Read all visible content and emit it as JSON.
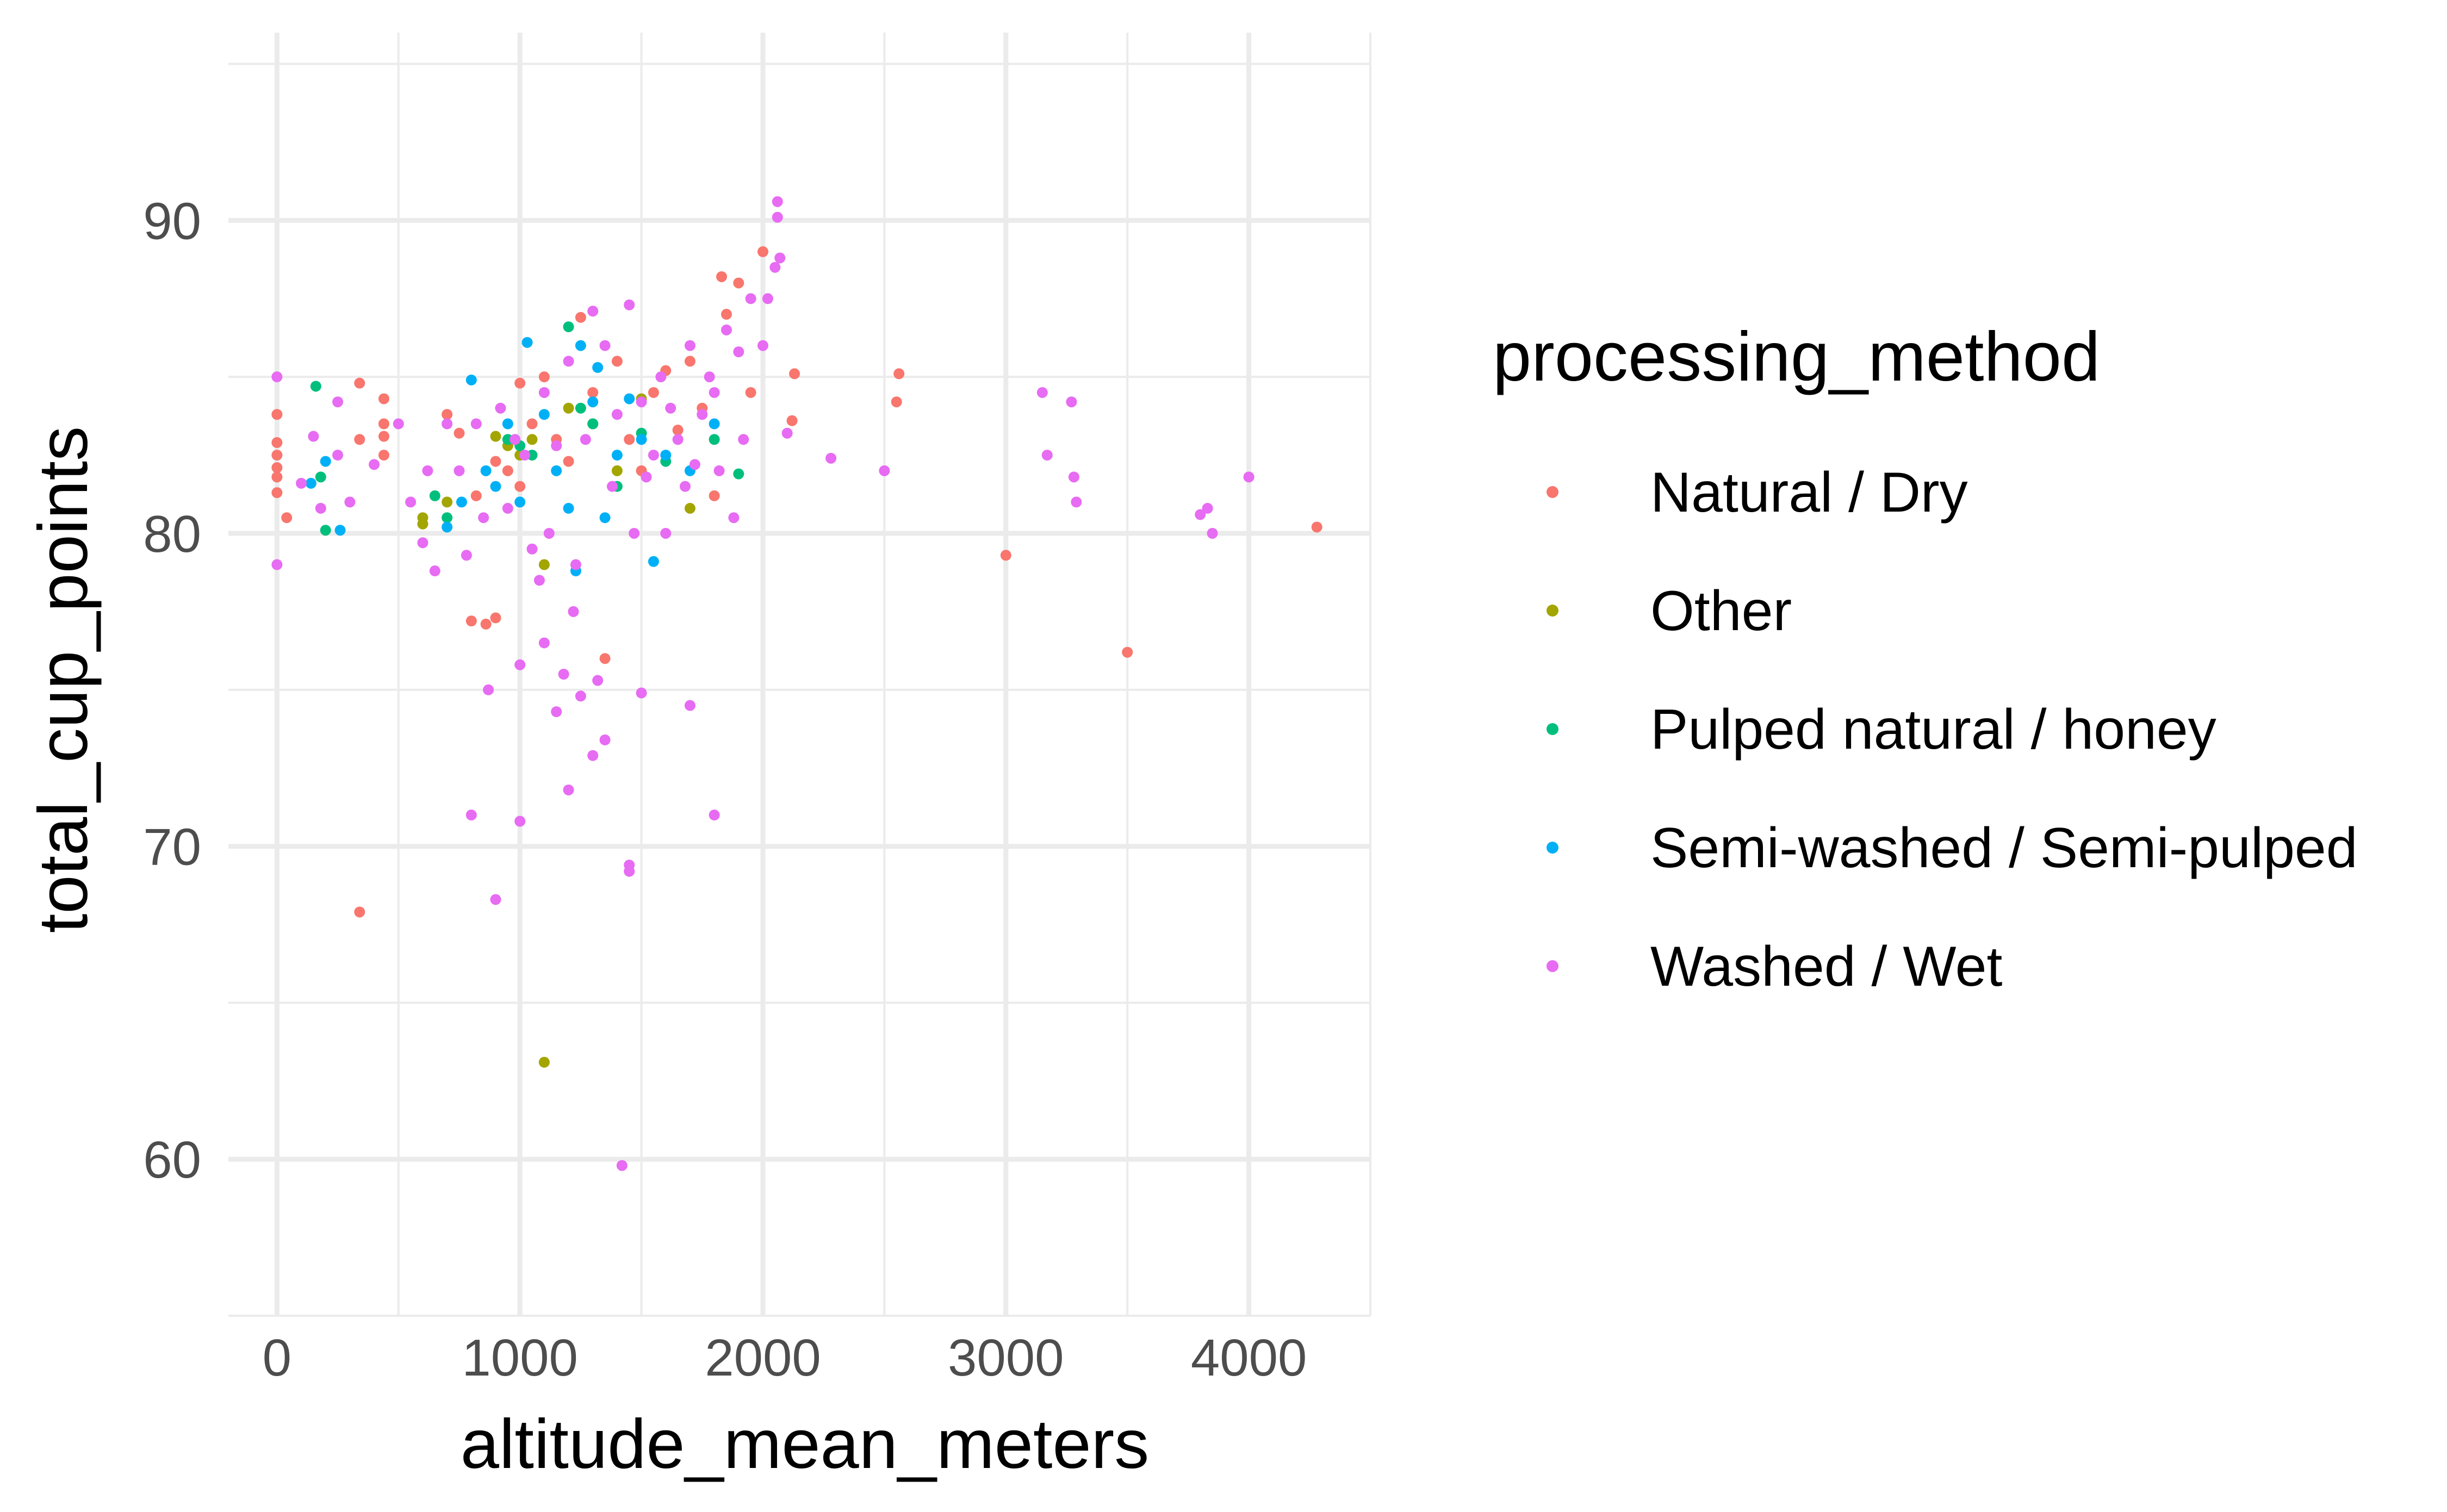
{
  "chart_data": {
    "type": "scatter",
    "xlabel": "altitude_mean_meters",
    "ylabel": "total_cup_points",
    "xlim": [
      -200,
      4500
    ],
    "ylim": [
      55,
      96
    ],
    "x_ticks": [
      0,
      1000,
      2000,
      3000,
      4000
    ],
    "x_minor": [
      500,
      1500,
      2500,
      3500,
      4500
    ],
    "y_ticks": [
      60,
      70,
      80,
      90
    ],
    "y_minor": [
      55,
      65,
      75,
      85,
      95
    ],
    "grid": true,
    "legend_title": "processing_method",
    "legend_position": "right",
    "series": [
      {
        "name": "Natural / Dry",
        "color": "#F8766D",
        "points": [
          [
            0,
            83.8
          ],
          [
            0,
            82.5
          ],
          [
            0,
            81.8
          ],
          [
            0,
            81.3
          ],
          [
            0,
            82.9
          ],
          [
            0,
            82.1
          ],
          [
            40,
            80.5
          ],
          [
            340,
            84.8
          ],
          [
            340,
            83.0
          ],
          [
            340,
            67.9
          ],
          [
            440,
            84.3
          ],
          [
            440,
            83.5
          ],
          [
            440,
            82.5
          ],
          [
            440,
            83.1
          ],
          [
            700,
            83.8
          ],
          [
            750,
            83.2
          ],
          [
            800,
            77.2
          ],
          [
            820,
            81.2
          ],
          [
            860,
            77.1
          ],
          [
            900,
            77.3
          ],
          [
            900,
            82.3
          ],
          [
            950,
            82.0
          ],
          [
            1000,
            81.5
          ],
          [
            1000,
            84.8
          ],
          [
            1050,
            83.5
          ],
          [
            1100,
            85.0
          ],
          [
            1150,
            83.0
          ],
          [
            1200,
            82.3
          ],
          [
            1250,
            86.9
          ],
          [
            1300,
            84.5
          ],
          [
            1350,
            76.0
          ],
          [
            1400,
            85.5
          ],
          [
            1450,
            83.0
          ],
          [
            1500,
            82.0
          ],
          [
            1550,
            84.5
          ],
          [
            1600,
            85.2
          ],
          [
            1650,
            83.3
          ],
          [
            1700,
            85.5
          ],
          [
            1750,
            84.0
          ],
          [
            1800,
            81.2
          ],
          [
            1830,
            88.2
          ],
          [
            1850,
            87.0
          ],
          [
            1900,
            88.0
          ],
          [
            1950,
            84.5
          ],
          [
            2000,
            89.0
          ],
          [
            2120,
            83.6
          ],
          [
            2130,
            85.1
          ],
          [
            2550,
            84.2
          ],
          [
            2560,
            85.1
          ],
          [
            3000,
            79.3
          ],
          [
            3500,
            76.2
          ],
          [
            4280,
            80.2
          ]
        ]
      },
      {
        "name": "Other",
        "color": "#A3A500",
        "points": [
          [
            600,
            80.5
          ],
          [
            600,
            80.3
          ],
          [
            700,
            81.0
          ],
          [
            900,
            83.1
          ],
          [
            950,
            82.8
          ],
          [
            1000,
            82.5
          ],
          [
            1050,
            83.0
          ],
          [
            1100,
            63.1
          ],
          [
            1100,
            79.0
          ],
          [
            1200,
            84.0
          ],
          [
            1300,
            83.5
          ],
          [
            1400,
            82.0
          ],
          [
            1500,
            84.3
          ],
          [
            1700,
            80.8
          ]
        ]
      },
      {
        "name": "Pulped natural / honey",
        "color": "#00BF7D",
        "points": [
          [
            160,
            84.7
          ],
          [
            180,
            81.8
          ],
          [
            200,
            80.1
          ],
          [
            650,
            81.2
          ],
          [
            700,
            80.5
          ],
          [
            950,
            83.0
          ],
          [
            1000,
            82.8
          ],
          [
            1050,
            82.5
          ],
          [
            1200,
            86.6
          ],
          [
            1250,
            84.0
          ],
          [
            1300,
            83.5
          ],
          [
            1400,
            81.5
          ],
          [
            1500,
            83.2
          ],
          [
            1600,
            82.3
          ],
          [
            1800,
            83.0
          ],
          [
            1900,
            81.9
          ]
        ]
      },
      {
        "name": "Semi-washed / Semi-pulped",
        "color": "#00B0F6",
        "points": [
          [
            140,
            81.6
          ],
          [
            200,
            82.3
          ],
          [
            260,
            80.1
          ],
          [
            700,
            80.2
          ],
          [
            760,
            81.0
          ],
          [
            800,
            84.9
          ],
          [
            860,
            82.0
          ],
          [
            900,
            81.5
          ],
          [
            950,
            83.5
          ],
          [
            1000,
            81.0
          ],
          [
            1030,
            86.1
          ],
          [
            1100,
            83.8
          ],
          [
            1150,
            82.0
          ],
          [
            1200,
            80.8
          ],
          [
            1230,
            78.8
          ],
          [
            1250,
            86.0
          ],
          [
            1300,
            84.2
          ],
          [
            1320,
            85.3
          ],
          [
            1350,
            80.5
          ],
          [
            1400,
            82.5
          ],
          [
            1450,
            84.3
          ],
          [
            1500,
            83.0
          ],
          [
            1550,
            79.1
          ],
          [
            1600,
            82.5
          ],
          [
            1700,
            82.0
          ],
          [
            1800,
            83.5
          ]
        ]
      },
      {
        "name": "Washed / Wet",
        "color": "#E76BF3",
        "points": [
          [
            0,
            85.0
          ],
          [
            0,
            79.0
          ],
          [
            100,
            81.6
          ],
          [
            150,
            83.1
          ],
          [
            180,
            80.8
          ],
          [
            250,
            84.2
          ],
          [
            250,
            82.5
          ],
          [
            300,
            81.0
          ],
          [
            400,
            82.2
          ],
          [
            500,
            83.5
          ],
          [
            550,
            81.0
          ],
          [
            600,
            79.7
          ],
          [
            620,
            82.0
          ],
          [
            650,
            78.8
          ],
          [
            700,
            83.5
          ],
          [
            750,
            82.0
          ],
          [
            780,
            79.3
          ],
          [
            800,
            71.0
          ],
          [
            820,
            83.5
          ],
          [
            850,
            80.5
          ],
          [
            870,
            75.0
          ],
          [
            900,
            68.3
          ],
          [
            920,
            84.0
          ],
          [
            950,
            80.8
          ],
          [
            980,
            83.0
          ],
          [
            1000,
            75.8
          ],
          [
            1000,
            70.8
          ],
          [
            1020,
            82.5
          ],
          [
            1050,
            79.5
          ],
          [
            1080,
            78.5
          ],
          [
            1100,
            76.5
          ],
          [
            1100,
            84.5
          ],
          [
            1120,
            80.0
          ],
          [
            1150,
            74.3
          ],
          [
            1150,
            82.8
          ],
          [
            1180,
            75.5
          ],
          [
            1200,
            71.8
          ],
          [
            1200,
            85.5
          ],
          [
            1220,
            77.5
          ],
          [
            1230,
            79.0
          ],
          [
            1250,
            74.8
          ],
          [
            1270,
            83.0
          ],
          [
            1300,
            72.9
          ],
          [
            1300,
            87.1
          ],
          [
            1320,
            75.3
          ],
          [
            1350,
            73.4
          ],
          [
            1350,
            86.0
          ],
          [
            1380,
            81.5
          ],
          [
            1400,
            83.8
          ],
          [
            1420,
            59.8
          ],
          [
            1450,
            69.4
          ],
          [
            1450,
            69.2
          ],
          [
            1450,
            87.3
          ],
          [
            1470,
            80.0
          ],
          [
            1500,
            74.9
          ],
          [
            1500,
            84.2
          ],
          [
            1520,
            81.8
          ],
          [
            1550,
            82.5
          ],
          [
            1580,
            85.0
          ],
          [
            1600,
            80.0
          ],
          [
            1620,
            84.0
          ],
          [
            1650,
            83.0
          ],
          [
            1680,
            81.5
          ],
          [
            1700,
            74.5
          ],
          [
            1700,
            86.0
          ],
          [
            1720,
            82.2
          ],
          [
            1750,
            83.8
          ],
          [
            1780,
            85.0
          ],
          [
            1800,
            71.0
          ],
          [
            1800,
            84.5
          ],
          [
            1820,
            82.0
          ],
          [
            1850,
            86.5
          ],
          [
            1880,
            80.5
          ],
          [
            1900,
            85.8
          ],
          [
            1920,
            83.0
          ],
          [
            1950,
            87.5
          ],
          [
            2000,
            86.0
          ],
          [
            2020,
            87.5
          ],
          [
            2050,
            88.5
          ],
          [
            2060,
            90.6
          ],
          [
            2060,
            90.1
          ],
          [
            2070,
            88.8
          ],
          [
            2100,
            83.2
          ],
          [
            2280,
            82.4
          ],
          [
            2500,
            82.0
          ],
          [
            3150,
            84.5
          ],
          [
            3170,
            82.5
          ],
          [
            3270,
            84.2
          ],
          [
            3280,
            81.8
          ],
          [
            3290,
            81.0
          ],
          [
            3800,
            80.6
          ],
          [
            3830,
            80.8
          ],
          [
            3850,
            80.0
          ],
          [
            4000,
            81.8
          ]
        ]
      }
    ]
  }
}
